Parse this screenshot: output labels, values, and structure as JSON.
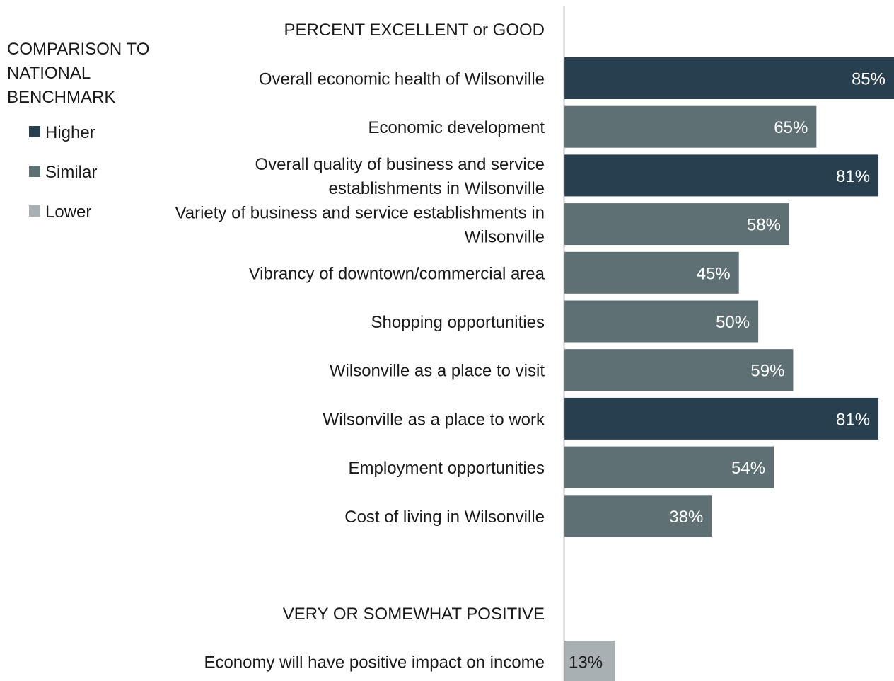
{
  "chart_data": {
    "type": "bar",
    "orientation": "horizontal",
    "legend": {
      "title_lines": [
        "COMPARISON TO",
        "NATIONAL",
        "BENCHMARK"
      ],
      "placement": "top-left",
      "entries": [
        {
          "label": "Higher",
          "color": "#283F4F"
        },
        {
          "label": "Similar",
          "color": "#5F7075"
        },
        {
          "label": "Lower",
          "color": "#A8B0B3"
        }
      ]
    },
    "groups": [
      {
        "heading": "PERCENT EXCELLENT or GOOD",
        "items": [
          {
            "label_lines": [
              "Overall economic health of Wilsonville"
            ],
            "value": 85,
            "value_label": "85%",
            "benchmark": "Higher"
          },
          {
            "label_lines": [
              "Economic development"
            ],
            "value": 65,
            "value_label": "65%",
            "benchmark": "Similar"
          },
          {
            "label_lines": [
              "Overall quality of business and service",
              "establishments in Wilsonville"
            ],
            "value": 81,
            "value_label": "81%",
            "benchmark": "Higher"
          },
          {
            "label_lines": [
              "Variety of business and service establishments in",
              "Wilsonville"
            ],
            "value": 58,
            "value_label": "58%",
            "benchmark": "Similar"
          },
          {
            "label_lines": [
              "Vibrancy of downtown/commercial area"
            ],
            "value": 45,
            "value_label": "45%",
            "benchmark": "Similar"
          },
          {
            "label_lines": [
              "Shopping opportunities"
            ],
            "value": 50,
            "value_label": "50%",
            "benchmark": "Similar"
          },
          {
            "label_lines": [
              "Wilsonville as a place to visit"
            ],
            "value": 59,
            "value_label": "59%",
            "benchmark": "Similar"
          },
          {
            "label_lines": [
              "Wilsonville as a place to work"
            ],
            "value": 81,
            "value_label": "81%",
            "benchmark": "Higher"
          },
          {
            "label_lines": [
              "Employment opportunities"
            ],
            "value": 54,
            "value_label": "54%",
            "benchmark": "Similar"
          },
          {
            "label_lines": [
              "Cost of living in Wilsonville"
            ],
            "value": 38,
            "value_label": "38%",
            "benchmark": "Similar"
          }
        ]
      },
      {
        "heading": "VERY OR SOMEWHAT POSITIVE",
        "items": [
          {
            "label_lines": [
              "Economy will have positive impact on income"
            ],
            "value": 13,
            "value_label": "13%",
            "benchmark": "Lower"
          }
        ]
      }
    ],
    "xlim": [
      0,
      85
    ]
  }
}
